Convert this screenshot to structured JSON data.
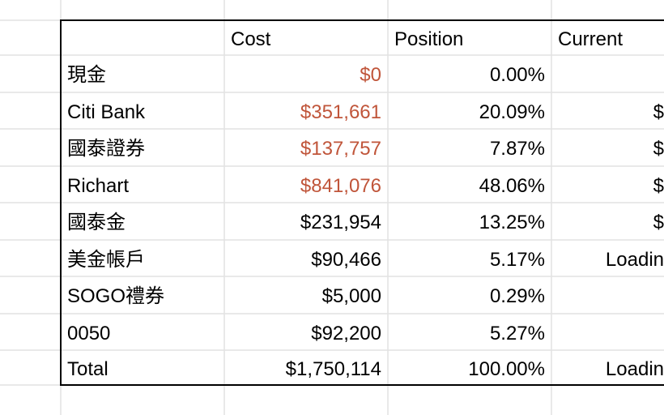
{
  "sheet": {
    "headers": [
      "",
      "Cost",
      "Position",
      "Current"
    ],
    "rows": [
      {
        "name": "現金",
        "cost": "$0",
        "position": "0.00%",
        "current": "",
        "cost_red": true
      },
      {
        "name": "Citi Bank",
        "cost": "$351,661",
        "position": "20.09%",
        "current": "$",
        "cost_red": true
      },
      {
        "name": "國泰證券",
        "cost": "$137,757",
        "position": "7.87%",
        "current": "$",
        "cost_red": true
      },
      {
        "name": "Richart",
        "cost": "$841,076",
        "position": "48.06%",
        "current": "$",
        "cost_red": true
      },
      {
        "name": "國泰金",
        "cost": "$231,954",
        "position": "13.25%",
        "current": "$",
        "cost_red": false
      },
      {
        "name": "美金帳戶",
        "cost": "$90,466",
        "position": "5.17%",
        "current": "Loadin",
        "cost_red": false
      },
      {
        "name": "SOGO禮券",
        "cost": "$5,000",
        "position": "0.29%",
        "current": "",
        "cost_red": false
      },
      {
        "name": "0050",
        "cost": "$92,200",
        "position": "5.27%",
        "current": "",
        "cost_red": false
      },
      {
        "name": "Total",
        "cost": "$1,750,114",
        "position": "100.00%",
        "current": "Loadin",
        "cost_red": false
      }
    ],
    "colors": {
      "grid": "#e2e2e2",
      "border": "#000000",
      "cost_red": "#c0553a"
    }
  }
}
